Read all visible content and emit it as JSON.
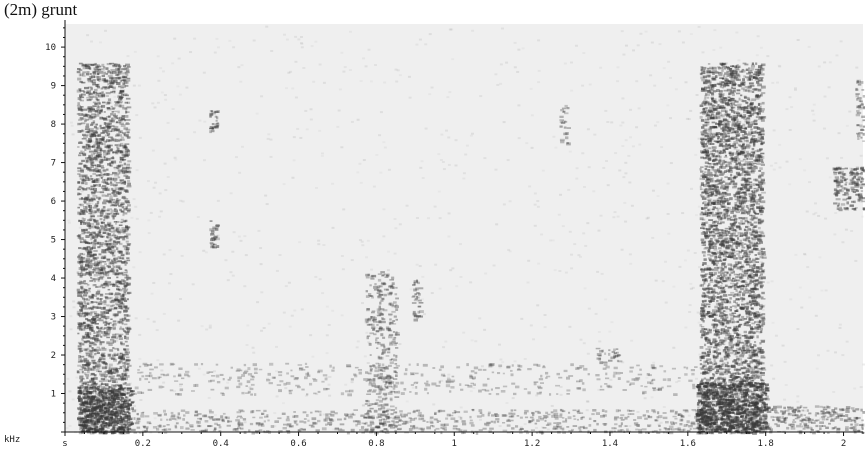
{
  "title": "(2m) grunt",
  "chart_data": {
    "type": "heatmap",
    "title": "(2m) grunt",
    "xlabel": "",
    "ylabel": "kHz",
    "x_unit": "s",
    "xlim": [
      0,
      2.05
    ],
    "ylim": [
      0,
      10.6
    ],
    "x_ticks": [
      "0",
      "0.2",
      "0.4",
      "0.6",
      "0.8",
      "1",
      "1.2",
      "1.4",
      "1.6",
      "1.8",
      "2"
    ],
    "x_tick_values": [
      0,
      0.2,
      0.4,
      0.6,
      0.8,
      1.0,
      1.2,
      1.4,
      1.6,
      1.8,
      2.0
    ],
    "y_ticks": [
      "1",
      "2",
      "3",
      "4",
      "5",
      "6",
      "7",
      "8",
      "9",
      "10"
    ],
    "y_tick_values": [
      1,
      2,
      3,
      4,
      5,
      6,
      7,
      8,
      9,
      10
    ],
    "background_color": "#efefef",
    "energy_color": "#3a3a3a",
    "regions": [
      {
        "t0": 0.03,
        "t1": 0.16,
        "f0": 0.0,
        "f1": 9.6,
        "density": 0.55
      },
      {
        "t0": 0.03,
        "t1": 0.17,
        "f0": 0.0,
        "f1": 1.2,
        "density": 0.9
      },
      {
        "t0": 1.63,
        "t1": 1.79,
        "f0": 0.0,
        "f1": 9.6,
        "density": 0.6
      },
      {
        "t0": 1.62,
        "t1": 1.8,
        "f0": 0.0,
        "f1": 1.3,
        "density": 0.9
      },
      {
        "t0": 1.79,
        "t1": 2.05,
        "f0": 0.0,
        "f1": 0.7,
        "density": 0.35
      },
      {
        "t0": 1.97,
        "t1": 2.05,
        "f0": 5.8,
        "f1": 6.9,
        "density": 0.5
      },
      {
        "t0": 2.03,
        "t1": 2.05,
        "f0": 7.5,
        "f1": 9.3,
        "density": 0.35
      },
      {
        "t0": 0.37,
        "t1": 0.39,
        "f0": 4.8,
        "f1": 5.5,
        "density": 0.6
      },
      {
        "t0": 0.37,
        "t1": 0.39,
        "f0": 7.8,
        "f1": 8.4,
        "density": 0.6
      },
      {
        "t0": 0.77,
        "t1": 0.85,
        "f0": 0.0,
        "f1": 4.2,
        "density": 0.3
      },
      {
        "t0": 0.89,
        "t1": 0.91,
        "f0": 2.8,
        "f1": 4.0,
        "density": 0.4
      },
      {
        "t0": 1.27,
        "t1": 1.29,
        "f0": 7.5,
        "f1": 8.5,
        "density": 0.35
      },
      {
        "t0": 0.17,
        "t1": 1.62,
        "f0": 0.0,
        "f1": 0.6,
        "density": 0.22
      },
      {
        "t0": 0.17,
        "t1": 1.62,
        "f0": 1.0,
        "f1": 1.8,
        "density": 0.1
      },
      {
        "t0": 1.36,
        "t1": 1.42,
        "f0": 1.8,
        "f1": 2.2,
        "density": 0.35
      }
    ]
  }
}
